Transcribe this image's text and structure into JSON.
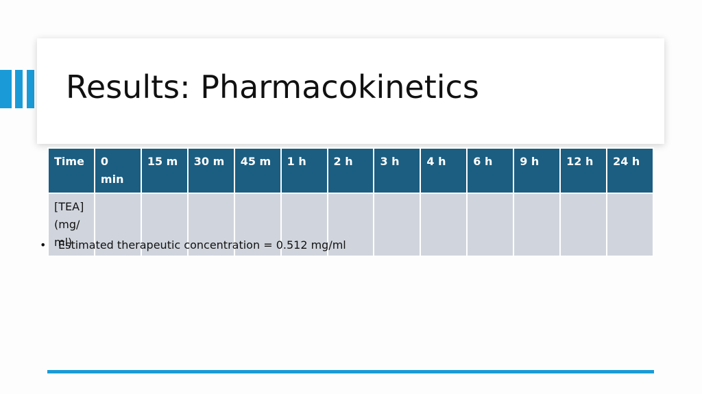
{
  "slide": {
    "title": "Results: Pharmacokinetics",
    "accent_color": "#1a9bd7",
    "header_fill_color": "#1b5e81",
    "body_fill_color": "#d0d5dd"
  },
  "table": {
    "header_label": "Time",
    "times": [
      "0 min",
      "15 m",
      "30 m",
      "45 m",
      "1 h",
      "2 h",
      "3 h",
      "4 h",
      "6 h",
      "9 h",
      "12 h",
      "24  h"
    ],
    "row_label": "[TEA] (mg/ ml)",
    "values": [
      "",
      "",
      "",
      "",
      "",
      "",
      "",
      "",
      "",
      "",
      "",
      ""
    ]
  },
  "note": {
    "bullet": "•",
    "text": "Estimated therapeutic concentration = 0.512 mg/ml"
  }
}
